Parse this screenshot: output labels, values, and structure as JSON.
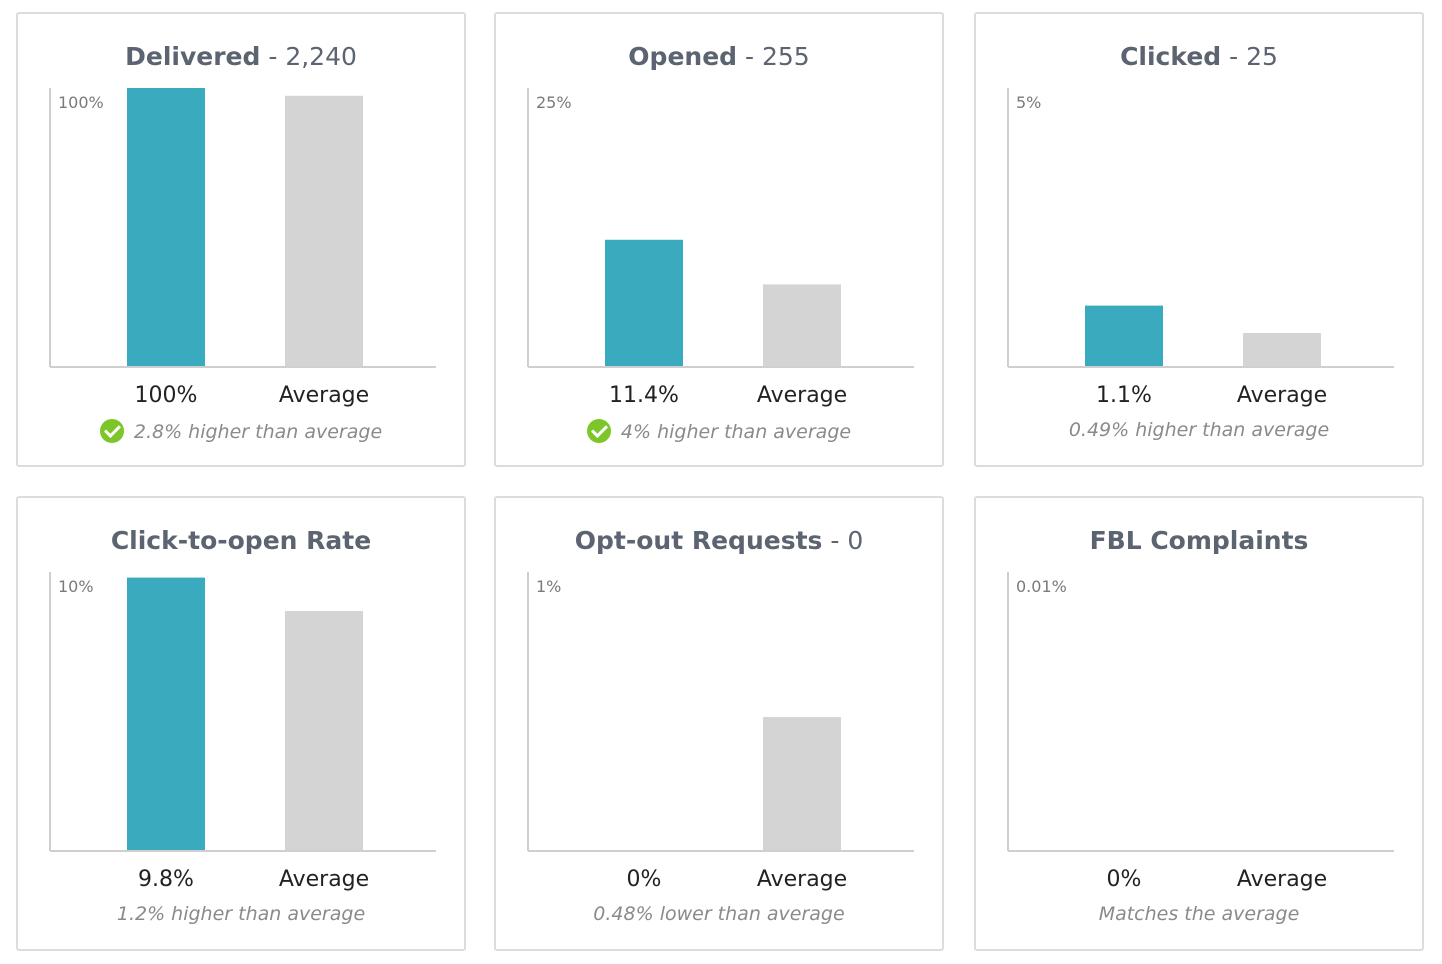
{
  "colors": {
    "campaign": "#3aaabf",
    "average": "#d4d4d4"
  },
  "chart_data": [
    {
      "type": "bar",
      "title_label": "Delivered",
      "title_value": "2,240",
      "ymax_label": "100%",
      "ylim": [
        0,
        100
      ],
      "categories": [
        "100%",
        "Average"
      ],
      "values": [
        100,
        97.2
      ],
      "footer": "2.8% higher than average",
      "check": true
    },
    {
      "type": "bar",
      "title_label": "Opened",
      "title_value": "255",
      "ymax_label": "25%",
      "ylim": [
        0,
        25
      ],
      "categories": [
        "11.4%",
        "Average"
      ],
      "values": [
        11.4,
        7.4
      ],
      "footer": "4% higher than average",
      "check": true
    },
    {
      "type": "bar",
      "title_label": "Clicked",
      "title_value": "25",
      "ymax_label": "5%",
      "ylim": [
        0,
        5
      ],
      "categories": [
        "1.1%",
        "Average"
      ],
      "values": [
        1.1,
        0.61
      ],
      "footer": "0.49% higher than average",
      "check": false
    },
    {
      "type": "bar",
      "title_label": "Click-to-open Rate",
      "title_value": "",
      "ymax_label": "10%",
      "ylim": [
        0,
        10
      ],
      "categories": [
        "9.8%",
        "Average"
      ],
      "values": [
        9.8,
        8.6
      ],
      "footer": "1.2% higher than average",
      "check": false
    },
    {
      "type": "bar",
      "title_label": "Opt-out Requests",
      "title_value": "0",
      "ymax_label": "1%",
      "ylim": [
        0,
        1
      ],
      "categories": [
        "0%",
        "Average"
      ],
      "values": [
        0,
        0.48
      ],
      "footer": "0.48% lower than average",
      "check": false
    },
    {
      "type": "bar",
      "title_label": "FBL Complaints",
      "title_value": "",
      "ymax_label": "0.01%",
      "ylim": [
        0,
        0.01
      ],
      "categories": [
        "0%",
        "Average"
      ],
      "values": [
        0,
        0
      ],
      "footer": "Matches the average",
      "check": false
    }
  ]
}
